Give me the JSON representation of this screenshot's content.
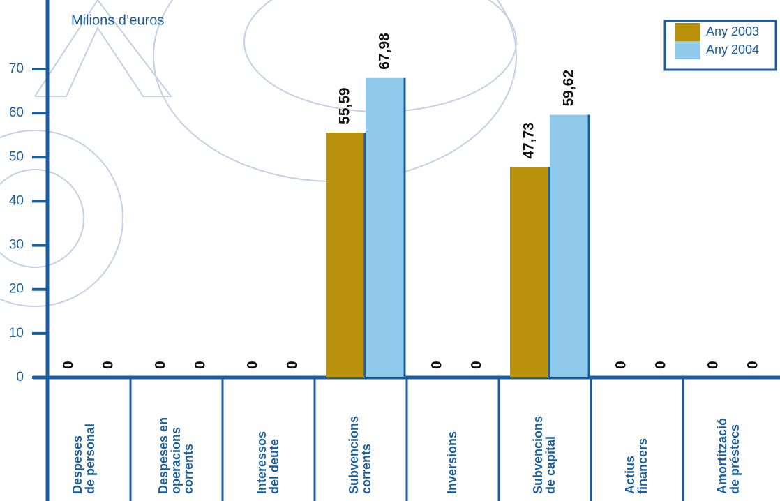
{
  "chart_data": {
    "type": "bar",
    "title": "Milions d’euros",
    "categories": [
      [
        "Despeses",
        "de personal"
      ],
      [
        "Despeses en",
        "operacions",
        "corrents"
      ],
      [
        "Interessos",
        "del deute"
      ],
      [
        "Subvencions",
        "corrents"
      ],
      [
        "Inversions"
      ],
      [
        "Subvencions",
        "de capital"
      ],
      [
        "Actius",
        "financers"
      ],
      [
        "Amortització",
        "de préstecs"
      ]
    ],
    "series": [
      {
        "name": "Any 2003",
        "color": "#b8900a",
        "values": [
          0,
          0,
          0,
          55.59,
          0,
          47.73,
          0,
          0
        ],
        "value_labels": [
          "0",
          "0",
          "0",
          "55,59",
          "0",
          "47,73",
          "0",
          "0"
        ]
      },
      {
        "name": "Any 2004",
        "color": "#8fcaed",
        "values": [
          0,
          0,
          0,
          67.98,
          0,
          59.62,
          0,
          0
        ],
        "value_labels": [
          "0",
          "0",
          "0",
          "67,98",
          "0",
          "59,62",
          "0",
          "0"
        ]
      }
    ],
    "ylim": [
      0,
      70
    ],
    "yticks": [
      0,
      10,
      20,
      30,
      40,
      50,
      60,
      70
    ]
  }
}
